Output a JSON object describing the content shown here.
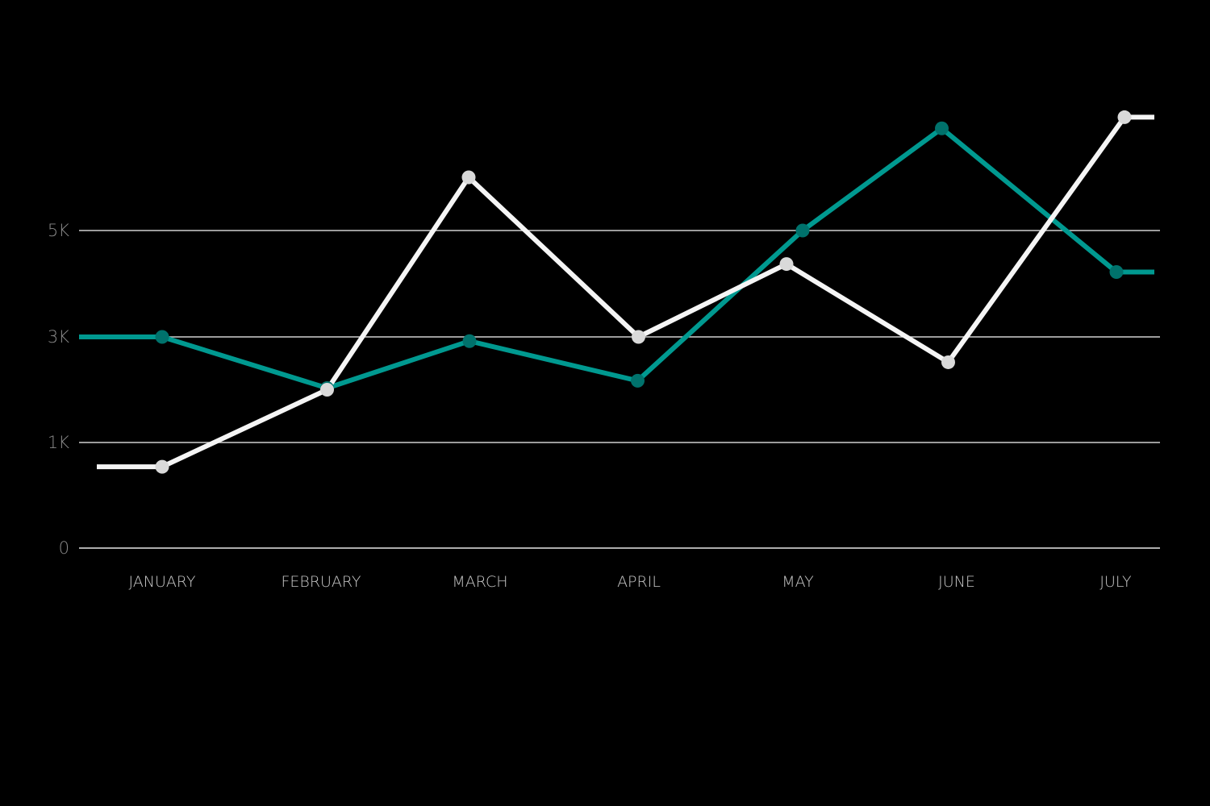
{
  "chart_data": {
    "type": "line",
    "categories": [
      "JANUARY",
      "FEBRUARY",
      "MARCH",
      "APRIL",
      "MAY",
      "JUNE",
      "JULY"
    ],
    "series": [
      {
        "values": [
          3000,
          2030,
          2920,
          2170,
          5000,
          6920,
          4220
        ],
        "color": "#009990",
        "marker_color": "#00726c"
      },
      {
        "values": [
          770,
          2000,
          6000,
          3000,
          4370,
          2520,
          7130
        ],
        "color": "#f5f5f5",
        "marker_color": "#d9d9d9"
      }
    ],
    "y_scale": {
      "type": "piecewise",
      "breakpoints": [
        0,
        1000,
        3000,
        5000
      ]
    },
    "yticks": [
      {
        "value": 0,
        "label": "0"
      },
      {
        "value": 1000,
        "label": "1K"
      },
      {
        "value": 3000,
        "label": "3K"
      },
      {
        "value": 5000,
        "label": "5K"
      }
    ],
    "title": "",
    "xlabel": "",
    "ylabel": "",
    "grid": true,
    "legend": "none",
    "colors": {
      "background": "#000000",
      "gridline": "#cfcfcf",
      "axis": "#e6e6e6",
      "tick_text": "#c8c8c8",
      "ytick_text": "#8a8a8a"
    }
  }
}
